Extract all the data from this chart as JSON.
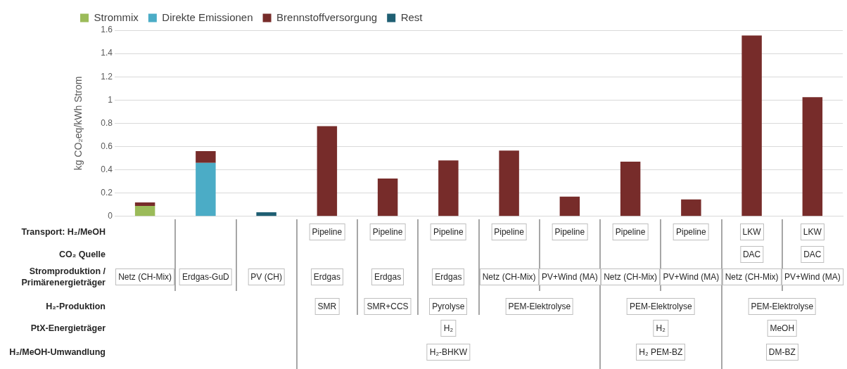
{
  "chart_data": {
    "type": "bar",
    "stacked": true,
    "ylabel": "kg CO₂eq/kWh Strom",
    "categories": [
      "Netz (CH-Mix)",
      "Erdgas-GuD",
      "PV (CH)",
      "Erdgas",
      "Erdgas",
      "Erdgas",
      "Netz (CH-Mix)",
      "PV+Wind (MA)",
      "Netz (CH-Mix)",
      "PV+Wind (MA)",
      "Netz (CH-Mix)",
      "PV+Wind (MA)"
    ],
    "series": [
      {
        "name": "Strommix",
        "color": "#9bbb59",
        "values": [
          0.09,
          0,
          0,
          0,
          0,
          0,
          0,
          0,
          0,
          0,
          0,
          0
        ]
      },
      {
        "name": "Direkte Emissionen",
        "color": "#4bacc6",
        "values": [
          0,
          0.46,
          0,
          0,
          0,
          0,
          0,
          0,
          0,
          0,
          0,
          0
        ]
      },
      {
        "name": "Brennstoffversorgung",
        "color": "#772c2a",
        "values": [
          0.03,
          0.1,
          0,
          0.775,
          0.325,
          0.48,
          0.565,
          0.17,
          0.47,
          0.145,
          1.555,
          1.025
        ]
      },
      {
        "name": "Rest",
        "color": "#1f5f73",
        "values": [
          0,
          0,
          0.035,
          0,
          0,
          0,
          0,
          0,
          0,
          0,
          0,
          0
        ]
      }
    ],
    "ylim": [
      0,
      1.6
    ],
    "yticks": [
      0,
      0.2,
      0.4,
      0.6,
      0.8,
      1,
      1.2,
      1.4,
      1.6
    ],
    "grid": "y",
    "legend": "top",
    "annotations": [
      "Transport: H₂/MeOH",
      "CO₂ Quelle",
      "Stromproduktion / Primärenergieträger",
      "H₂-Produktion",
      "PtX-Energieträger",
      "H₂/MeOH-Umwandlung",
      "Pipeline",
      "Pipeline",
      "Pipeline",
      "Pipeline",
      "Pipeline",
      "Pipeline",
      "Pipeline",
      "LKW",
      "LKW",
      "DAC",
      "DAC",
      "SMR",
      "SMR+CCS",
      "Pyrolyse",
      "PEM-Elektrolyse",
      "PEM-Elektrolyse",
      "PEM-Elektrolyse",
      "H₂",
      "H₂",
      "MeOH",
      "H₂-BHKW",
      "H₂ PEM-BZ",
      "DM-BZ"
    ]
  }
}
